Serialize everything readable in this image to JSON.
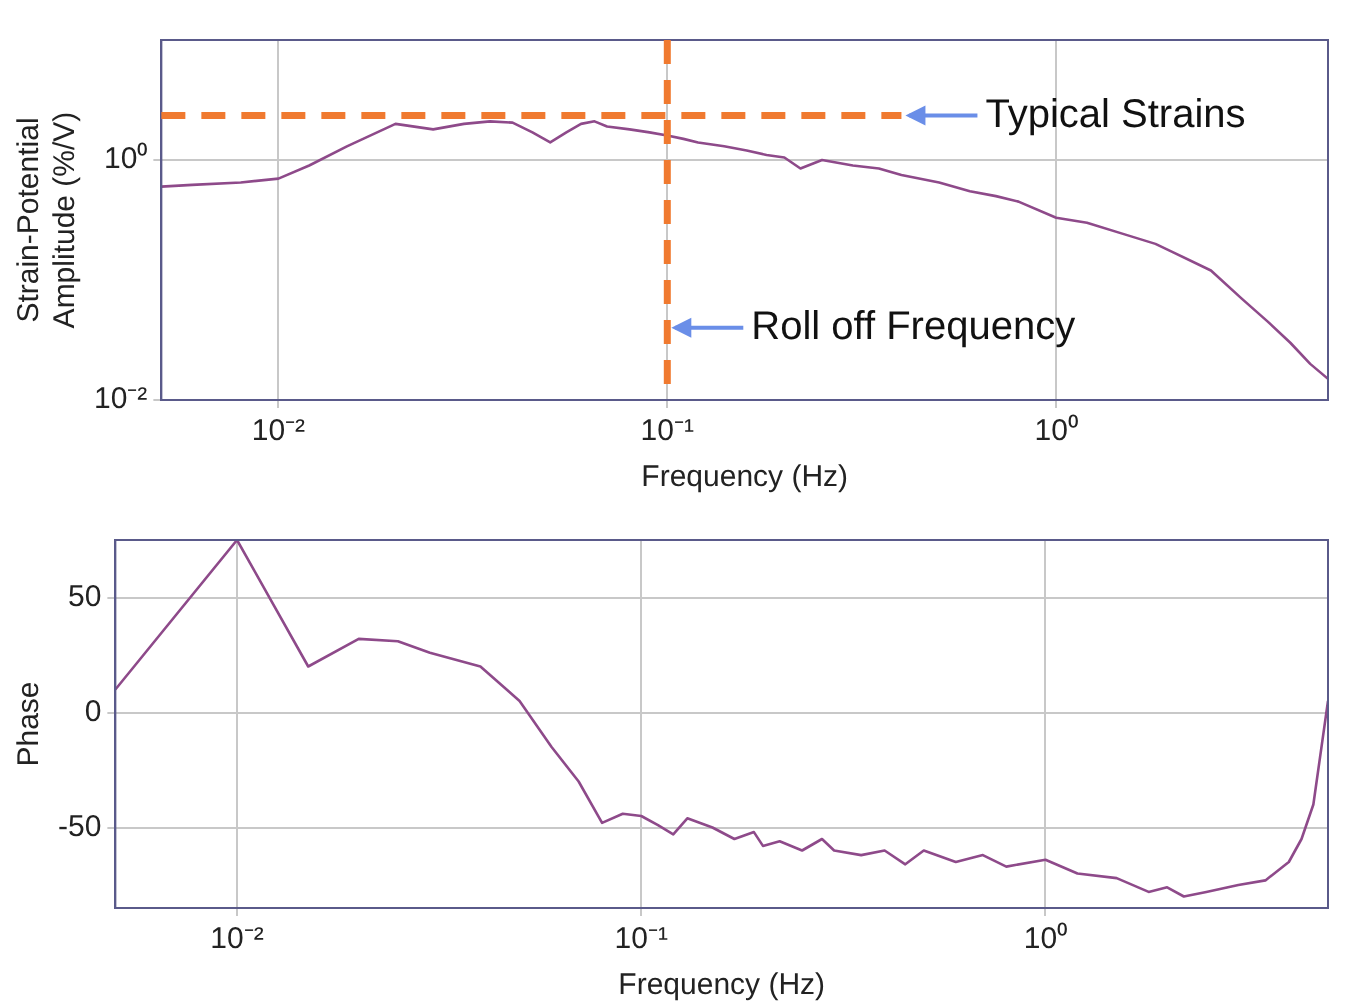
{
  "chart_data": [
    {
      "type": "line",
      "xlabel": "Frequency (Hz)",
      "ylabel": "Strain-Potential Amplitude (%/V)",
      "log": "xy",
      "xlim": [
        0.005,
        5
      ],
      "ylim": [
        0.01,
        10
      ],
      "xticks": [
        {
          "value": 0.01,
          "label": "10⁻²"
        },
        {
          "value": 0.1,
          "label": "10⁻¹"
        },
        {
          "value": 1,
          "label": "10⁰"
        }
      ],
      "yticks": [
        {
          "value": 0.01,
          "label": "10⁻²"
        },
        {
          "value": 1,
          "label": "10⁰"
        }
      ],
      "grid": true,
      "legend": false,
      "series": [
        {
          "color": "#8e4a8a",
          "x": [
            0.005,
            0.006,
            0.008,
            0.01,
            0.012,
            0.015,
            0.02,
            0.025,
            0.03,
            0.035,
            0.04,
            0.045,
            0.05,
            0.055,
            0.06,
            0.065,
            0.07,
            0.08,
            0.09,
            0.1,
            0.11,
            0.12,
            0.14,
            0.16,
            0.18,
            0.2,
            0.22,
            0.25,
            0.3,
            0.35,
            0.4,
            0.5,
            0.6,
            0.7,
            0.8,
            1,
            1.2,
            1.5,
            1.8,
            2,
            2.5,
            3,
            3.5,
            4,
            4.5,
            5
          ],
          "values": [
            0.6,
            0.62,
            0.65,
            0.7,
            0.9,
            1.3,
            2,
            1.8,
            2.0,
            2.1,
            2.05,
            1.7,
            1.4,
            1.7,
            2.0,
            2.1,
            1.9,
            1.8,
            1.7,
            1.6,
            1.5,
            1.4,
            1.3,
            1.2,
            1.1,
            1.05,
            0.85,
            1.0,
            0.9,
            0.85,
            0.75,
            0.65,
            0.55,
            0.5,
            0.45,
            0.33,
            0.3,
            0.24,
            0.2,
            0.17,
            0.12,
            0.07,
            0.045,
            0.03,
            0.02,
            0.015
          ]
        }
      ],
      "ref_lines": [
        {
          "axis": "y",
          "value": 2.35,
          "color": "#f07a30",
          "line_style": "dashed"
        },
        {
          "axis": "x",
          "value": 0.1,
          "color": "#f07a30",
          "line_style": "dashed"
        }
      ],
      "annotations": [
        {
          "text": "Typical Strains",
          "x": 0.4,
          "y": 2.35
        },
        {
          "text": "Roll off Frequency",
          "x": 0.1,
          "y": 0.04
        }
      ]
    },
    {
      "type": "line",
      "xlabel": "Frequency (Hz)",
      "ylabel": "Phase",
      "log": "x",
      "xlim": [
        0.005,
        5
      ],
      "ylim": [
        -85,
        75
      ],
      "xticks": [
        {
          "value": 0.01,
          "label": "10⁻²"
        },
        {
          "value": 0.1,
          "label": "10⁻¹"
        },
        {
          "value": 1,
          "label": "10⁰"
        }
      ],
      "yticks": [
        -50,
        0,
        50
      ],
      "grid": true,
      "legend": false,
      "series": [
        {
          "color": "#8e4a8a",
          "x": [
            0.005,
            0.01,
            0.015,
            0.02,
            0.025,
            0.03,
            0.04,
            0.05,
            0.06,
            0.07,
            0.08,
            0.09,
            0.1,
            0.11,
            0.12,
            0.13,
            0.15,
            0.17,
            0.19,
            0.2,
            0.22,
            0.25,
            0.28,
            0.3,
            0.35,
            0.4,
            0.45,
            0.5,
            0.6,
            0.7,
            0.8,
            1,
            1.2,
            1.5,
            1.8,
            2,
            2.2,
            2.5,
            3,
            3.5,
            4,
            4.3,
            4.6,
            5
          ],
          "values": [
            10,
            75,
            20,
            32,
            31,
            26,
            20,
            5,
            -15,
            -30,
            -48,
            -44,
            -45,
            -49,
            -53,
            -46,
            -50,
            -55,
            -52,
            -58,
            -56,
            -60,
            -55,
            -60,
            -62,
            -60,
            -66,
            -60,
            -65,
            -62,
            -67,
            -64,
            -70,
            -72,
            -78,
            -76,
            -80,
            -78,
            -75,
            -73,
            -65,
            -55,
            -40,
            5
          ]
        }
      ]
    }
  ]
}
